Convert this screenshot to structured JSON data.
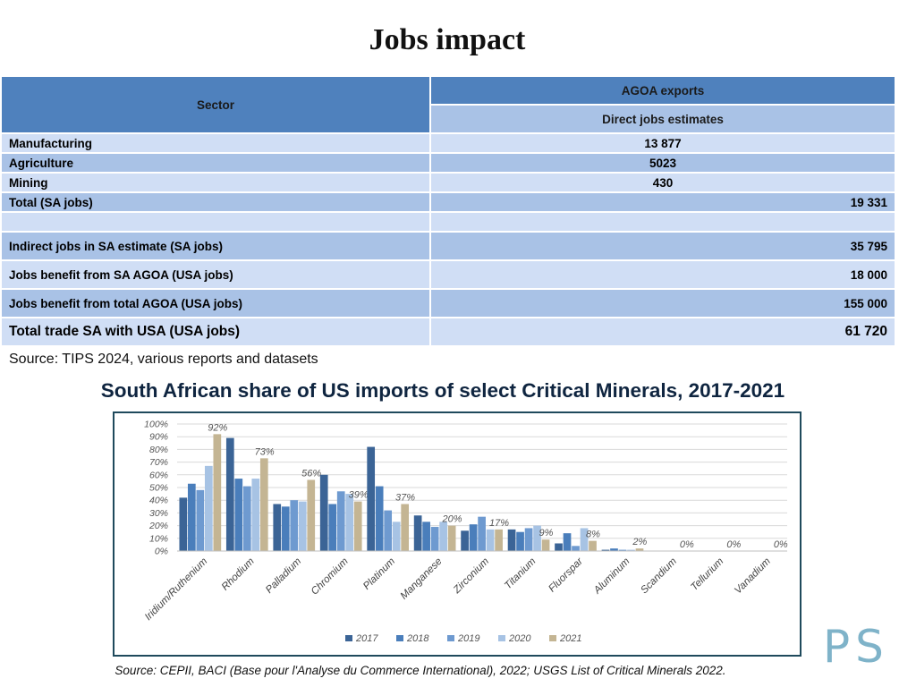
{
  "title": "Jobs impact",
  "table": {
    "header_sector": "Sector",
    "header_agoa": "AGOA exports",
    "header_direct": "Direct jobs estimates",
    "rows": [
      {
        "label": "Manufacturing",
        "value": "13 877"
      },
      {
        "label": "Agriculture",
        "value": "5023"
      },
      {
        "label": "Mining",
        "value": "430"
      },
      {
        "label": "Total (SA jobs)",
        "value": "19 331"
      },
      {
        "label": "",
        "value": ""
      },
      {
        "label": "Indirect jobs in SA estimate (SA jobs)",
        "value": "35 795"
      },
      {
        "label": "Jobs benefit from SA AGOA (USA jobs)",
        "value": "18 000"
      },
      {
        "label": "Jobs benefit from total AGOA (USA jobs)",
        "value": "155 000"
      },
      {
        "label": "Total trade SA with USA (USA jobs)",
        "value": "61 720"
      }
    ]
  },
  "table_source": "Source: TIPS 2024, various reports and datasets",
  "chart_title": "South African share of US imports of select Critical Minerals, 2017-2021",
  "chart_data": {
    "type": "bar",
    "categories": [
      "Iridium/Ruthenium",
      "Rhodium",
      "Palladium",
      "Chromium",
      "Platinum",
      "Manganese",
      "Zirconium",
      "Titanium",
      "Fluorspar",
      "Aluminum",
      "Scandium",
      "Tellurium",
      "Vanadium"
    ],
    "series": [
      {
        "name": "2017",
        "color": "#3b6496",
        "values": [
          42,
          89,
          37,
          60,
          82,
          28,
          16,
          17,
          6,
          1,
          0,
          0,
          0
        ]
      },
      {
        "name": "2018",
        "color": "#4a7ebb",
        "values": [
          53,
          57,
          35,
          37,
          51,
          23,
          21,
          15,
          14,
          2,
          0,
          0,
          0
        ]
      },
      {
        "name": "2019",
        "color": "#6e9ad0",
        "values": [
          48,
          51,
          40,
          47,
          32,
          19,
          27,
          18,
          4,
          1,
          0,
          0,
          0
        ]
      },
      {
        "name": "2020",
        "color": "#a7c3e4",
        "values": [
          67,
          57,
          39,
          45,
          23,
          23,
          17,
          20,
          18,
          1,
          0,
          0,
          0
        ]
      },
      {
        "name": "2021",
        "color": "#c4b593",
        "values": [
          92,
          73,
          56,
          39,
          37,
          20,
          17,
          9,
          8,
          2,
          0,
          0,
          0
        ]
      }
    ],
    "data_labels": [
      "92%",
      "73%",
      "56%",
      "39%",
      "37%",
      "20%",
      "17%",
      "9%",
      "8%",
      "2%",
      "0%",
      "0%",
      "0%"
    ],
    "yticks": [
      "0%",
      "10%",
      "20%",
      "30%",
      "40%",
      "50%",
      "60%",
      "70%",
      "80%",
      "90%",
      "100%"
    ],
    "ylim": [
      0,
      100
    ],
    "legend_position": "bottom",
    "grid": true
  },
  "chart_source": "Source: CEPII, BACI (Base pour l'Analyse du Commerce International), 2022; USGS List of Critical Minerals 2022.",
  "logo_text": "PS"
}
